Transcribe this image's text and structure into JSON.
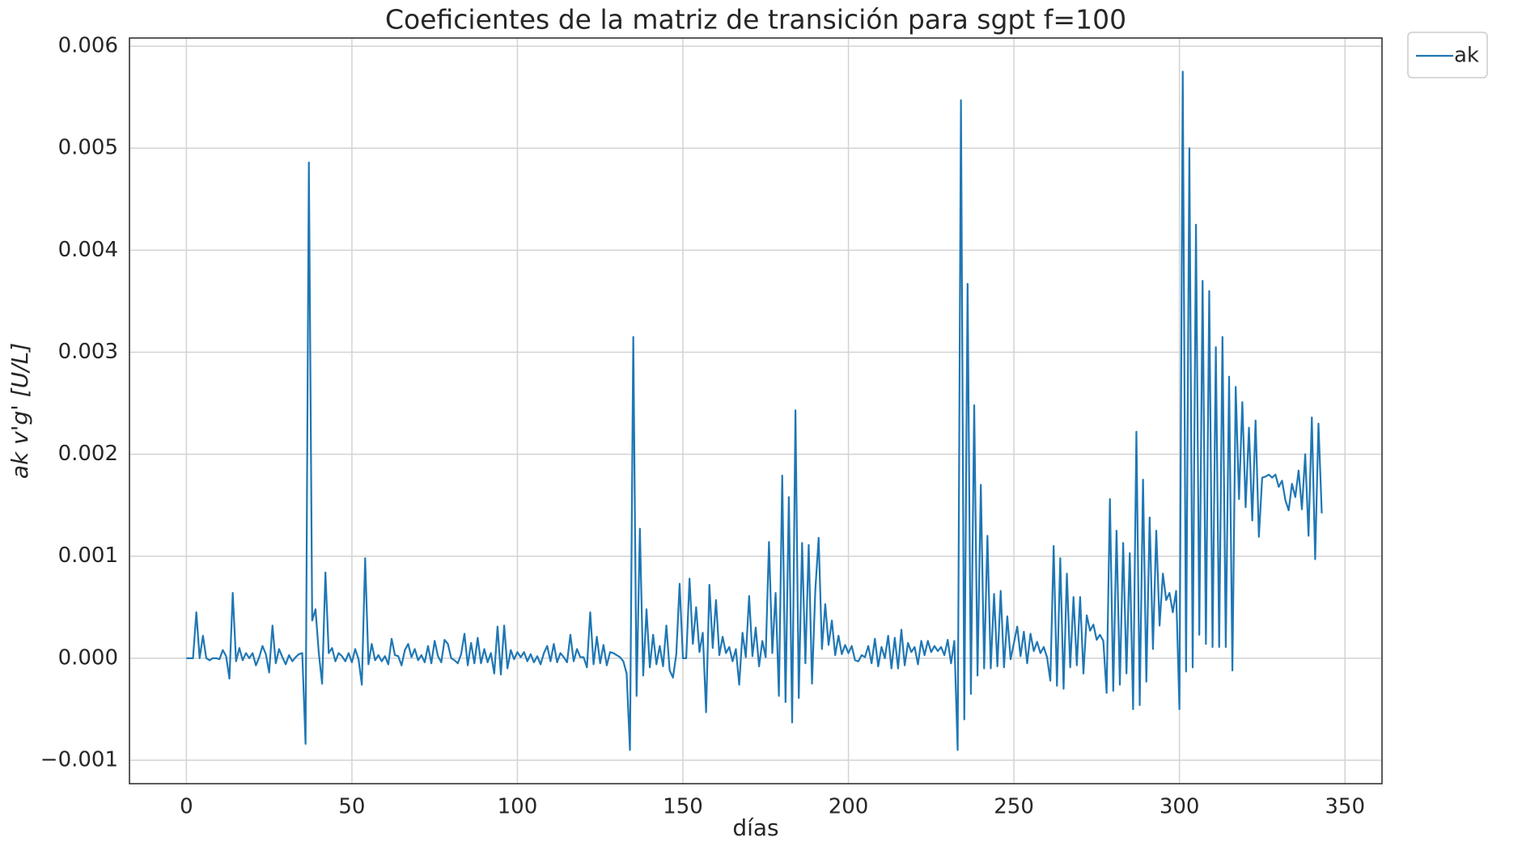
{
  "chart_data": {
    "type": "line",
    "title": "Coeficientes de la matriz de transición para sgpt f=100",
    "x_label": "días",
    "y_label": "ak v'g' [U/L]",
    "xlim": [
      -17.2,
      361.2
    ],
    "xticks": [
      0,
      50,
      100,
      150,
      200,
      250,
      300,
      350
    ],
    "ylim": [
      -0.00123,
      0.00608
    ],
    "yticks": [
      {
        "value": -0.001,
        "label": "−0.001"
      },
      {
        "value": 0,
        "label": "0.000"
      },
      0.001,
      0.002,
      0.003,
      0.004,
      0.005,
      0.006
    ],
    "grid": true,
    "legend": "outside-upper-right",
    "x": [
      0,
      1,
      2,
      3,
      4,
      5,
      6,
      7,
      8,
      9,
      10,
      11,
      12,
      13,
      14,
      15,
      16,
      17,
      18,
      19,
      20,
      21,
      22,
      23,
      24,
      25,
      26,
      27,
      28,
      29,
      30,
      31,
      32,
      33,
      34,
      35,
      36,
      37,
      38,
      39,
      40,
      41,
      42,
      43,
      44,
      45,
      46,
      47,
      48,
      49,
      50,
      51,
      52,
      53,
      54,
      55,
      56,
      57,
      58,
      59,
      60,
      61,
      62,
      63,
      64,
      65,
      66,
      67,
      68,
      69,
      70,
      71,
      72,
      73,
      74,
      75,
      76,
      77,
      78,
      79,
      80,
      81,
      82,
      83,
      84,
      85,
      86,
      87,
      88,
      89,
      90,
      91,
      92,
      93,
      94,
      95,
      96,
      97,
      98,
      99,
      100,
      101,
      102,
      103,
      104,
      105,
      106,
      107,
      108,
      109,
      110,
      111,
      112,
      113,
      114,
      115,
      116,
      117,
      118,
      119,
      120,
      121,
      122,
      123,
      124,
      125,
      126,
      127,
      128,
      129,
      130,
      131,
      132,
      133,
      134,
      135,
      136,
      137,
      138,
      139,
      140,
      141,
      142,
      143,
      144,
      145,
      146,
      147,
      148,
      149,
      150,
      151,
      152,
      153,
      154,
      155,
      156,
      157,
      158,
      159,
      160,
      161,
      162,
      163,
      164,
      165,
      166,
      167,
      168,
      169,
      170,
      171,
      172,
      173,
      174,
      175,
      176,
      177,
      178,
      179,
      180,
      181,
      182,
      183,
      184,
      185,
      186,
      187,
      188,
      189,
      190,
      191,
      192,
      193,
      194,
      195,
      196,
      197,
      198,
      199,
      200,
      201,
      202,
      203,
      204,
      205,
      206,
      207,
      208,
      209,
      210,
      211,
      212,
      213,
      214,
      215,
      216,
      217,
      218,
      219,
      220,
      221,
      222,
      223,
      224,
      225,
      226,
      227,
      228,
      229,
      230,
      231,
      232,
      233,
      234,
      235,
      236,
      237,
      238,
      239,
      240,
      241,
      242,
      243,
      244,
      245,
      246,
      247,
      248,
      249,
      250,
      251,
      252,
      253,
      254,
      255,
      256,
      257,
      258,
      259,
      260,
      261,
      262,
      263,
      264,
      265,
      266,
      267,
      268,
      269,
      270,
      271,
      272,
      273,
      274,
      275,
      276,
      277,
      278,
      279,
      280,
      281,
      282,
      283,
      284,
      285,
      286,
      287,
      288,
      289,
      290,
      291,
      292,
      293,
      294,
      295,
      296,
      297,
      298,
      299,
      300,
      301,
      302,
      303,
      304,
      305,
      306,
      307,
      308,
      309,
      310,
      311,
      312,
      313,
      314,
      315,
      316,
      317,
      318,
      319,
      320,
      321,
      322,
      323,
      324,
      325,
      326,
      327,
      328,
      329,
      330,
      331,
      332,
      333,
      334,
      335,
      336,
      337,
      338,
      339,
      340,
      341,
      342,
      343
    ],
    "series": [
      {
        "name": "ak",
        "color": "#1f77b4",
        "values": [
          0,
          0,
          0,
          0.00045,
          0,
          0.00022,
          0,
          -2e-05,
          0,
          0,
          -1e-05,
          8e-05,
          2e-05,
          -0.0002,
          0.00064,
          -3e-05,
          0.0001,
          -2e-05,
          5e-05,
          0,
          5e-05,
          -7e-05,
          1e-05,
          0.00012,
          4e-05,
          -0.00014,
          0.00032,
          -5e-05,
          9e-05,
          1e-05,
          -6e-05,
          3e-05,
          -3e-05,
          1e-05,
          4e-05,
          5e-05,
          -0.00084,
          0.00486,
          0.00037,
          0.00048,
          5e-05,
          -0.00025,
          0.00084,
          5e-05,
          0.0001,
          -3e-05,
          5e-05,
          2e-05,
          -3e-05,
          5e-05,
          -4e-05,
          9e-05,
          -1e-05,
          -0.00026,
          0.00098,
          -6e-05,
          0.00014,
          -2e-05,
          3e-05,
          -3e-05,
          2e-05,
          -6e-05,
          0.00019,
          3e-05,
          2e-05,
          -7e-05,
          8e-05,
          0.00014,
          1e-05,
          9e-05,
          -2e-05,
          3e-05,
          -4e-05,
          0.00012,
          -5e-05,
          0.00017,
          2e-05,
          -4e-05,
          0.00018,
          0.00014,
          0,
          -2e-05,
          -5e-05,
          4e-05,
          0.00024,
          -7e-05,
          0.00015,
          -5e-05,
          0.0002,
          -5e-05,
          9e-05,
          -4e-05,
          5e-05,
          -0.00015,
          0.00031,
          -0.00016,
          0.00032,
          -0.0001,
          8e-05,
          -1e-05,
          6e-05,
          1e-05,
          6e-05,
          -3e-05,
          4e-05,
          -4e-05,
          2e-05,
          -6e-05,
          5e-05,
          0.00012,
          -3e-05,
          0.00014,
          -4e-05,
          5e-05,
          1e-05,
          -4e-05,
          0.00023,
          -3e-05,
          9e-05,
          1e-05,
          1e-05,
          -9e-05,
          0.00045,
          -6e-05,
          0.00021,
          -5e-05,
          0.00013,
          -7e-05,
          6e-05,
          5e-05,
          3e-05,
          1e-05,
          -3e-05,
          -0.00015,
          -0.0009,
          0.00315,
          -0.00037,
          0.00127,
          -0.00017,
          0.00048,
          -9e-05,
          0.00023,
          -6e-05,
          0.00012,
          -8e-05,
          0.00032,
          -0.00012,
          -0.00019,
          4e-05,
          0.00073,
          0,
          0,
          0.00078,
          0.00014,
          0.0005,
          6e-05,
          0.00025,
          -0.00053,
          0.00072,
          0.0001,
          0.00057,
          3e-05,
          0.00021,
          5e-05,
          0.00011,
          -3e-05,
          9e-05,
          -0.00026,
          0.00025,
          1e-05,
          0.00061,
          2e-05,
          0.0003,
          -8e-05,
          0.00017,
          1e-05,
          0.00114,
          5e-05,
          0.00064,
          -0.00037,
          0.00179,
          -0.00043,
          0.00158,
          -0.00063,
          0.00243,
          -0.00039,
          0.00113,
          -5e-05,
          0.00111,
          -0.00025,
          0.00067,
          0.00118,
          9e-05,
          0.00053,
          0.00013,
          0.00037,
          3e-05,
          0.00022,
          4e-05,
          0.00013,
          5e-05,
          0.00012,
          -2e-05,
          -3e-05,
          3e-05,
          1e-05,
          0.00012,
          -5e-05,
          0.00019,
          -8e-05,
          0.00011,
          0,
          0.00022,
          -0.0001,
          0.0002,
          -0.0001,
          0.00028,
          -7e-05,
          0.00015,
          6e-05,
          0.00011,
          -6e-05,
          0.00017,
          3e-05,
          0.00017,
          6e-05,
          0.00012,
          7e-05,
          0.00011,
          3e-05,
          0.00018,
          -5e-05,
          0.00017,
          -0.0009,
          0.00547,
          -0.0006,
          0.00367,
          -0.00035,
          0.00248,
          -0.00017,
          0.0017,
          -0.0001,
          0.0012,
          -0.0001,
          0.00063,
          -8e-05,
          0.00066,
          -9e-05,
          0.00041,
          -1e-05,
          0.00015,
          0.00031,
          2e-05,
          0.00026,
          -5e-05,
          0.00024,
          7e-05,
          0.00016,
          5e-05,
          0.00011,
          1e-05,
          -0.00022,
          0.0011,
          -0.00027,
          0.00098,
          -0.0003,
          0.00083,
          -9e-05,
          0.0006,
          -7e-05,
          0.0006,
          -0.00015,
          0.00042,
          0.00027,
          0.00033,
          0.00018,
          0.00023,
          0.00017,
          -0.00034,
          0.00156,
          -0.00032,
          0.00125,
          -0.00026,
          0.00113,
          -0.00015,
          0.00103,
          -0.0005,
          0.00222,
          -0.00046,
          0.00175,
          -0.00023,
          0.00138,
          9e-05,
          0.00125,
          0.00032,
          0.00083,
          0.00057,
          0.00064,
          0.00045,
          0.00066,
          -0.0005,
          0.00575,
          -0.00013,
          0.005,
          -9e-05,
          0.00425,
          0.00023,
          0.0037,
          0.00014,
          0.0036,
          0.00011,
          0.00305,
          0.00011,
          0.00315,
          0.00011,
          0.00276,
          -0.00012,
          0.00266,
          0.00156,
          0.00251,
          0.00148,
          0.00226,
          0.00135,
          0.00233,
          0.00119,
          0.00177,
          0.00178,
          0.0018,
          0.00177,
          0.0018,
          0.00168,
          0.00174,
          0.00155,
          0.00145,
          0.00171,
          0.00158,
          0.00184,
          0.00146,
          0.002,
          0.0012,
          0.00236,
          0.00097,
          0.0023,
          0.00142
        ]
      }
    ]
  }
}
